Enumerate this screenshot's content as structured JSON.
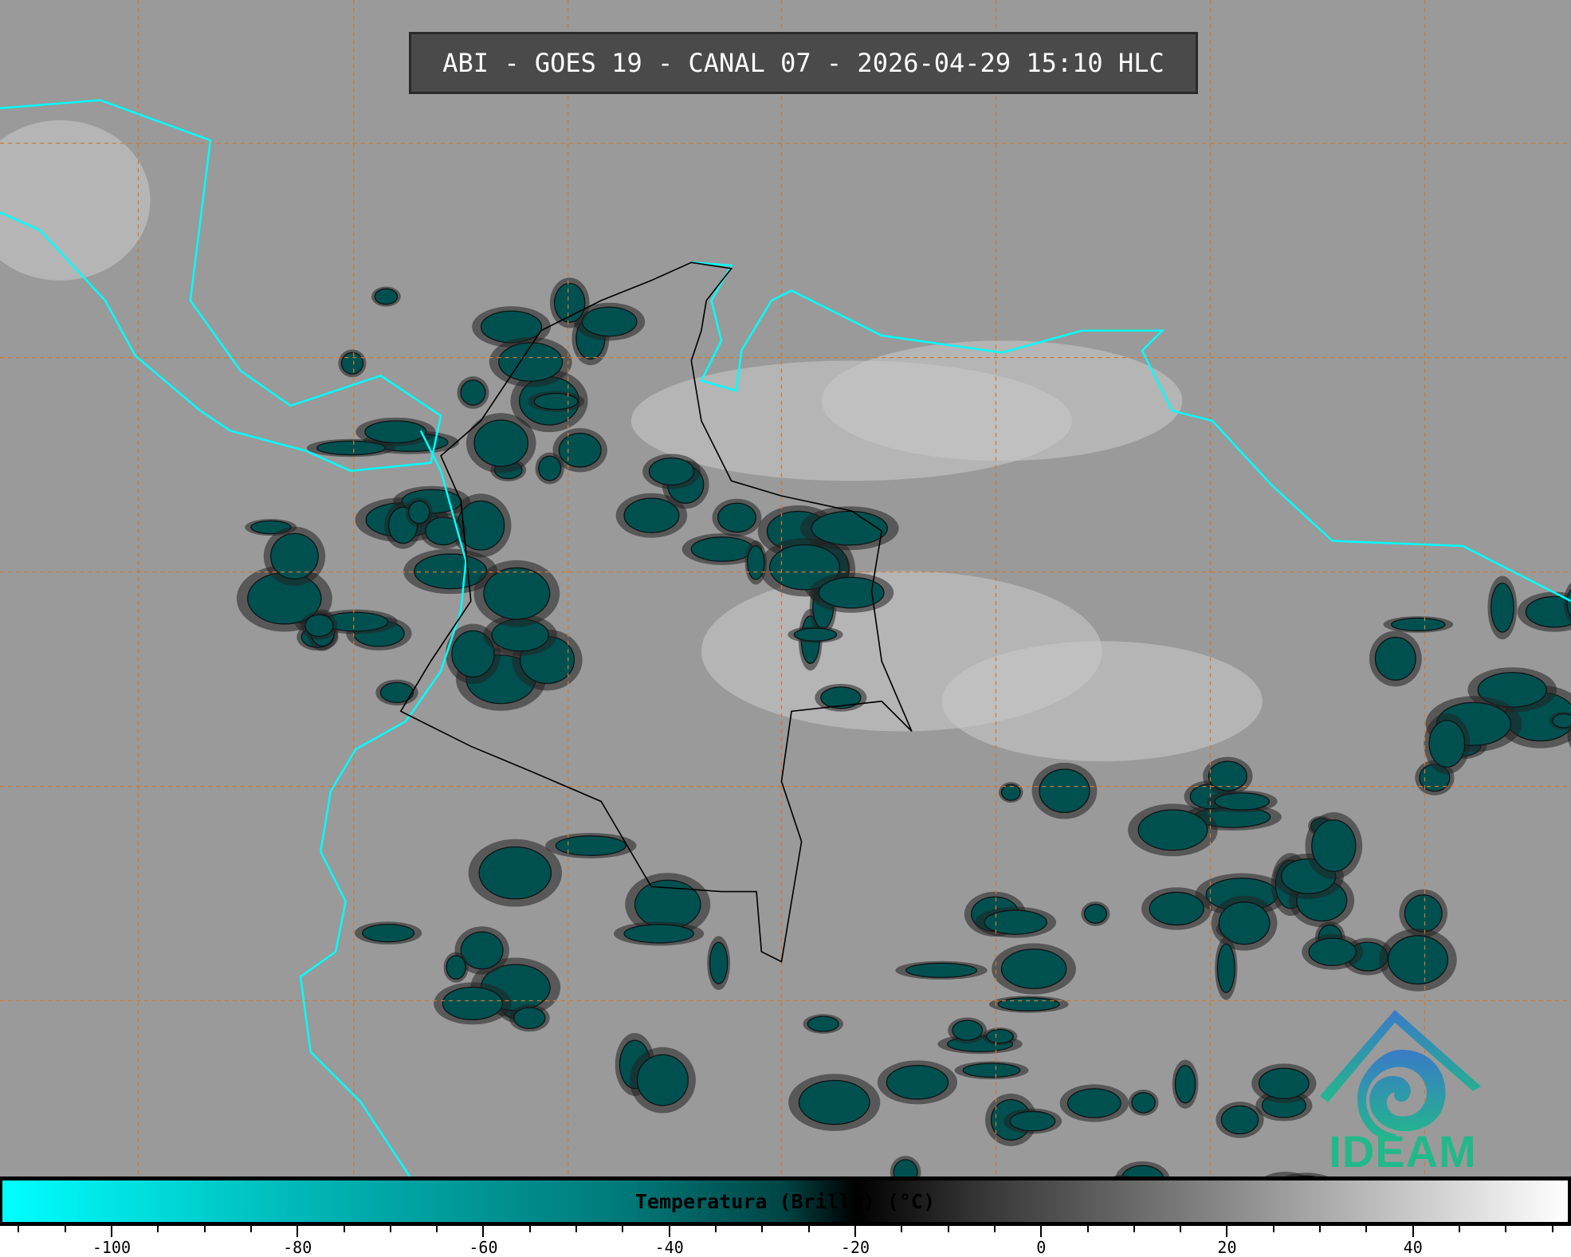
{
  "title": "ABI - GOES 19 - CANAL 07 - 2026-04-29 15:10 HLC",
  "logo": {
    "text": "IDEAM"
  },
  "colorbar": {
    "label": "Temperatura (Brillo) (°C)",
    "range": [
      -112,
      57
    ],
    "major_ticks": [
      "-100",
      "-80",
      "-60",
      "-40",
      "-20",
      "0",
      "20",
      "40"
    ],
    "minor_step": 5,
    "colors": {
      "min": "#00ffff",
      "mid": "#007878",
      "threshold": "#000000",
      "max": "#ffffff"
    }
  },
  "map": {
    "coastline_color": "#00ffff",
    "border_color": "#000000",
    "grid_color": "#d2782d",
    "cold_cloud_color": "#005050",
    "background_color": "#9a9a9a"
  }
}
